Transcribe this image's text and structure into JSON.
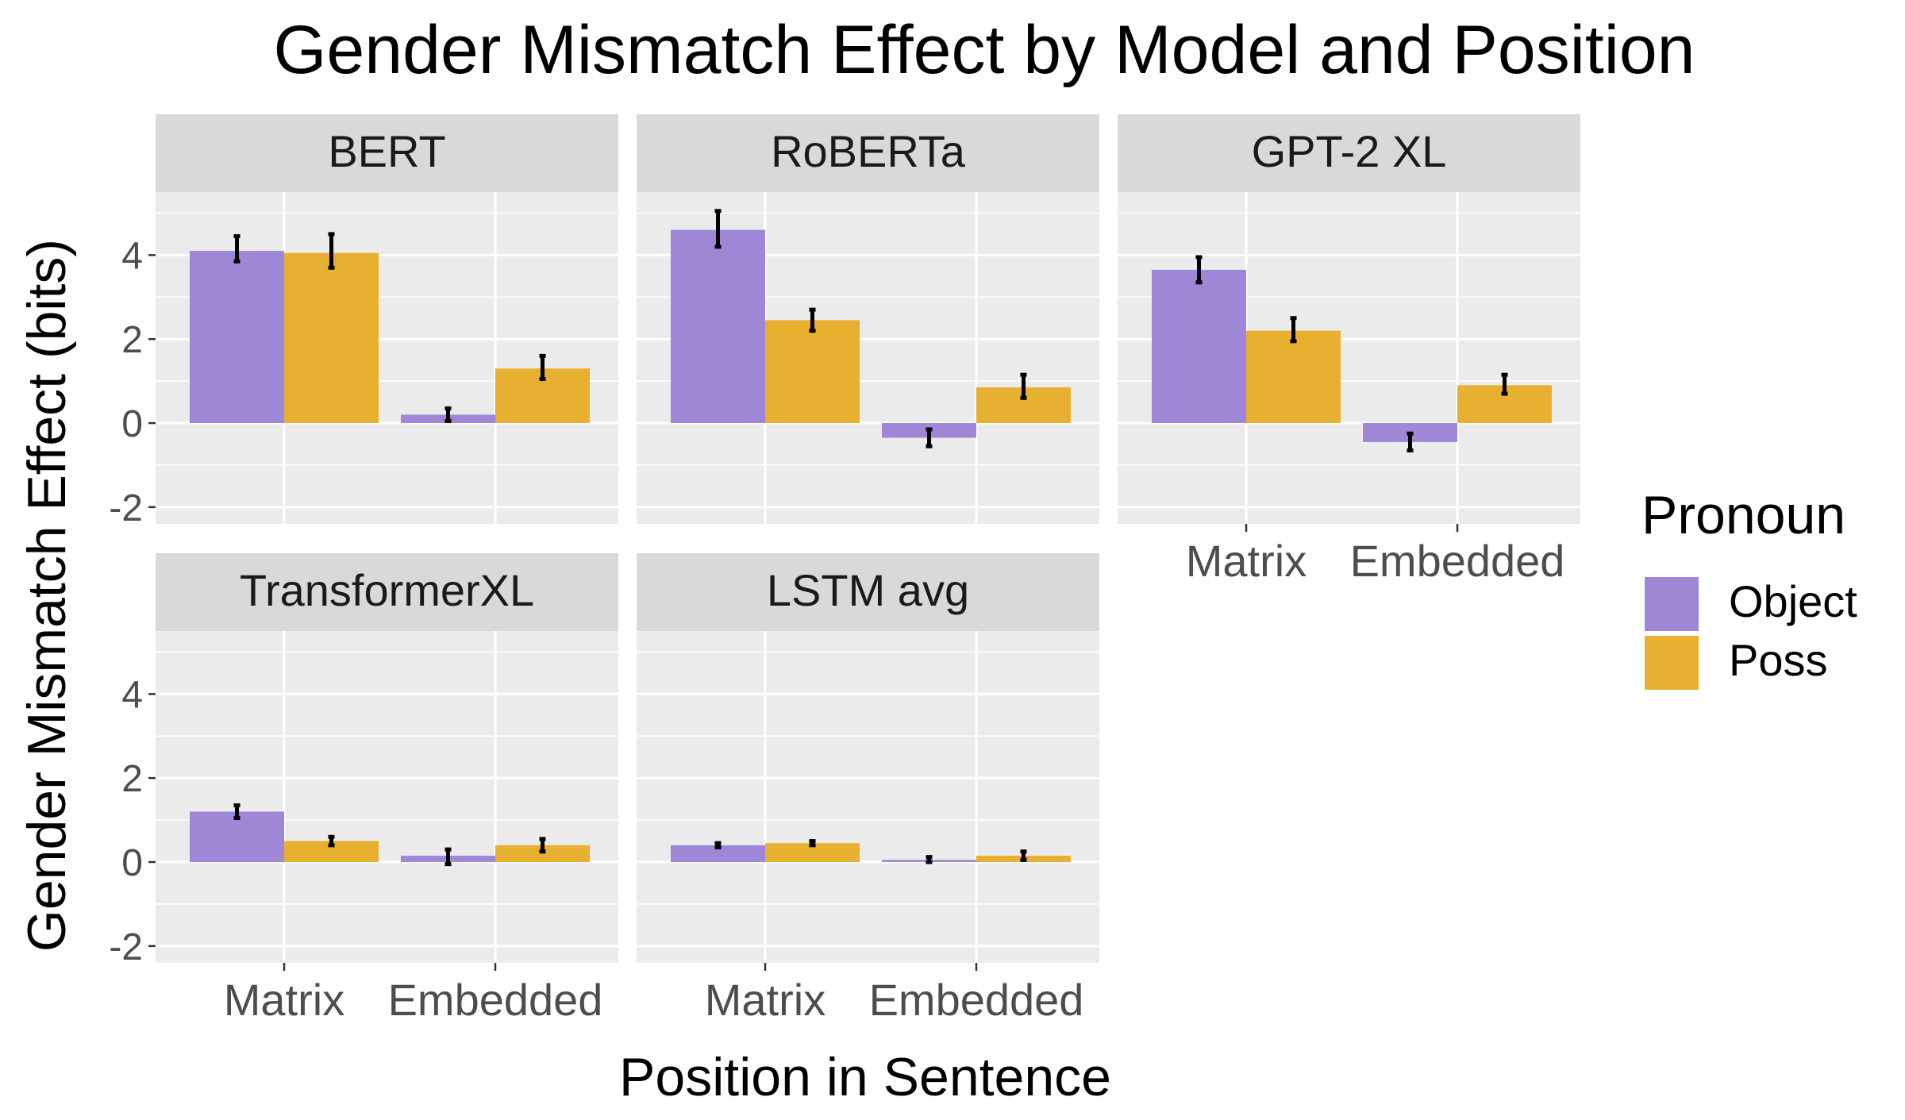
{
  "chart_data": {
    "type": "bar",
    "title": "Gender Mismatch Effect by Model and Position",
    "xlabel": "Position in Sentence",
    "ylabel": "Gender Mismatch Effect (bits)",
    "ylim": [
      -2.4,
      5.5
    ],
    "yticks": [
      -2,
      0,
      2,
      4
    ],
    "categories": [
      "Matrix",
      "Embedded"
    ],
    "legend": {
      "title": "Pronoun",
      "position": "right",
      "entries": [
        {
          "name": "Object",
          "color": "#9f87d8"
        },
        {
          "name": "Poss",
          "color": "#e7b031"
        }
      ]
    },
    "grid": true,
    "panels": [
      {
        "title": "BERT",
        "series": [
          {
            "name": "Object",
            "values": [
              4.1,
              0.2
            ],
            "err_low": [
              3.85,
              0.05
            ],
            "err_high": [
              4.45,
              0.35
            ]
          },
          {
            "name": "Poss",
            "values": [
              4.05,
              1.3
            ],
            "err_low": [
              3.7,
              1.05
            ],
            "err_high": [
              4.5,
              1.6
            ]
          }
        ]
      },
      {
        "title": "RoBERTa",
        "series": [
          {
            "name": "Object",
            "values": [
              4.6,
              -0.35
            ],
            "err_low": [
              4.2,
              -0.55
            ],
            "err_high": [
              5.05,
              -0.15
            ]
          },
          {
            "name": "Poss",
            "values": [
              2.45,
              0.85
            ],
            "err_low": [
              2.2,
              0.6
            ],
            "err_high": [
              2.7,
              1.15
            ]
          }
        ]
      },
      {
        "title": "GPT-2 XL",
        "series": [
          {
            "name": "Object",
            "values": [
              3.65,
              -0.45
            ],
            "err_low": [
              3.35,
              -0.65
            ],
            "err_high": [
              3.95,
              -0.25
            ]
          },
          {
            "name": "Poss",
            "values": [
              2.2,
              0.9
            ],
            "err_low": [
              1.95,
              0.7
            ],
            "err_high": [
              2.5,
              1.15
            ]
          }
        ]
      },
      {
        "title": "TransformerXL",
        "series": [
          {
            "name": "Object",
            "values": [
              1.2,
              0.15
            ],
            "err_low": [
              1.05,
              -0.05
            ],
            "err_high": [
              1.35,
              0.3
            ]
          },
          {
            "name": "Poss",
            "values": [
              0.5,
              0.4
            ],
            "err_low": [
              0.4,
              0.25
            ],
            "err_high": [
              0.6,
              0.55
            ]
          }
        ]
      },
      {
        "title": "LSTM avg",
        "series": [
          {
            "name": "Object",
            "values": [
              0.4,
              0.05
            ],
            "err_low": [
              0.35,
              0.0
            ],
            "err_high": [
              0.45,
              0.12
            ]
          },
          {
            "name": "Poss",
            "values": [
              0.45,
              0.15
            ],
            "err_low": [
              0.4,
              0.05
            ],
            "err_high": [
              0.5,
              0.25
            ]
          }
        ]
      }
    ]
  }
}
